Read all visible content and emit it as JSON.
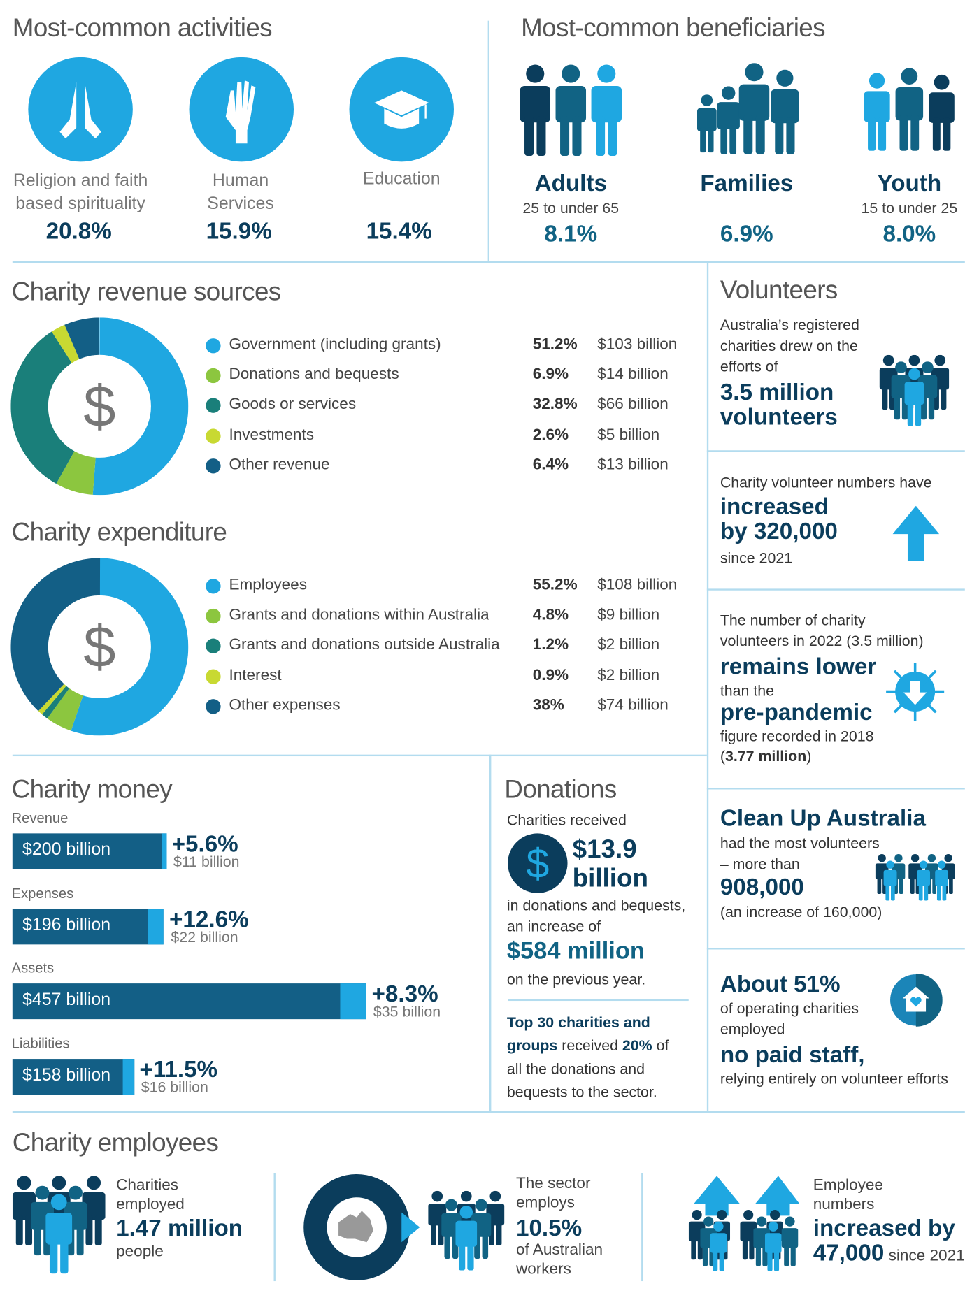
{
  "colors": {
    "light_blue": "#1fa7e1",
    "navy": "#0b3d5c",
    "mid_blue": "#116384",
    "teal": "#1a7f7a",
    "green": "#8cc63f",
    "yellow_green": "#c8d932",
    "divider": "#b3dcef"
  },
  "activities": {
    "title": "Most-common activities",
    "items": [
      {
        "icon": "praying-hands-icon",
        "label": "Religion and faith based spirituality",
        "pct": "20.8%"
      },
      {
        "icon": "helping-hand-icon",
        "label": "Human Services",
        "pct": "15.9%"
      },
      {
        "icon": "graduation-cap-icon",
        "label": "Education",
        "pct": "15.4%"
      }
    ]
  },
  "beneficiaries": {
    "title": "Most-common beneficiaries",
    "items": [
      {
        "icon": "adults-group-icon",
        "label": "Adults",
        "sub": "25 to under 65",
        "pct": "8.1%"
      },
      {
        "icon": "family-group-icon",
        "label": "Families",
        "sub": "",
        "pct": "6.9%"
      },
      {
        "icon": "youth-group-icon",
        "label": "Youth",
        "sub": "15 to under 25",
        "pct": "8.0%"
      }
    ]
  },
  "revenue": {
    "title": "Charity revenue sources",
    "center_icon": "dollar-icon",
    "center_symbol": "$",
    "items": [
      {
        "label": "Government (including grants)",
        "pct": "51.2%",
        "value": "$103 billion",
        "share": 51.2,
        "color": "#1fa7e1"
      },
      {
        "label": "Donations and bequests",
        "pct": "6.9%",
        "value": "$14 billion",
        "share": 6.9,
        "color": "#8cc63f"
      },
      {
        "label": "Goods or services",
        "pct": "32.8%",
        "value": "$66 billion",
        "share": 32.8,
        "color": "#1a7f7a"
      },
      {
        "label": "Investments",
        "pct": "2.6%",
        "value": "$5 billion",
        "share": 2.6,
        "color": "#c8d932"
      },
      {
        "label": "Other revenue",
        "pct": "6.4%",
        "value": "$13 billion",
        "share": 6.4,
        "color": "#135f86"
      }
    ]
  },
  "expenditure": {
    "title": "Charity expenditure",
    "center_symbol": "$",
    "items": [
      {
        "label": "Employees",
        "pct": "55.2%",
        "value": "$108 billion",
        "share": 55.2,
        "color": "#1fa7e1"
      },
      {
        "label": "Grants and donations within Australia",
        "pct": "4.8%",
        "value": "$9 billion",
        "share": 4.8,
        "color": "#8cc63f"
      },
      {
        "label": "Grants and donations outside Australia",
        "pct": "1.2%",
        "value": "$2 billion",
        "share": 1.2,
        "color": "#1a7f7a"
      },
      {
        "label": "Interest",
        "pct": "0.9%",
        "value": "$2 billion",
        "share": 0.9,
        "color": "#c8d932"
      },
      {
        "label": "Other expenses",
        "pct": "38%",
        "value": "$74 billion",
        "share": 38,
        "color": "#135f86"
      }
    ]
  },
  "volunteers": {
    "title": "Volunteers",
    "intro": "Australia’s registered charities drew on the efforts of",
    "highlight": "3.5 million volunteers",
    "increase_intro": "Charity volunteer numbers have",
    "increase_highlight": "increased by 320,000",
    "increase_since": "since 2021",
    "lower_intro": "The number of charity volunteers in 2022 (3.5 million)",
    "lower_h1": "remains lower",
    "lower_mid": "than the",
    "lower_h2": "pre-pandemic",
    "lower_tail": "figure recorded in 2018",
    "lower_fig_open": "(",
    "lower_fig": "3.77 million",
    "lower_fig_close": ")",
    "cleanup_title": "Clean Up Australia",
    "cleanup_line1": "had the most volunteers",
    "cleanup_line2": "– more than",
    "cleanup_num": "908,000",
    "cleanup_inc": "(an increase of 160,000)",
    "nostaff_title": "About 51%",
    "nostaff_line": "of operating charities employed",
    "nostaff_highlight": "no paid staff,",
    "nostaff_tail": "relying entirely on volunteer efforts"
  },
  "money": {
    "title": "Charity money",
    "items": [
      {
        "label": "Revenue",
        "value": "$200 billion",
        "change": "+5.6%",
        "change_abs": "$11 billion"
      },
      {
        "label": "Expenses",
        "value": "$196 billion",
        "change": "+12.6%",
        "change_abs": "$22 billion"
      },
      {
        "label": "Assets",
        "value": "$457 billion",
        "change": "+8.3%",
        "change_abs": "$35 billion"
      },
      {
        "label": "Liabilities",
        "value": "$158 billion",
        "change": "+11.5%",
        "change_abs": "$16 billion"
      }
    ]
  },
  "donations": {
    "title": "Donations",
    "received": "Charities received",
    "symbol": "$",
    "amount_line1": "$13.9",
    "amount_line2": "billion",
    "desc": "in donations and bequests, an increase of",
    "increase": "$584 million",
    "tail": "on the previous year.",
    "top30_bold": "Top 30 charities and groups",
    "top30_mid": " received ",
    "top30_pct": "20%",
    "top30_tail": " of all the donations and bequests to the sector."
  },
  "employees": {
    "title": "Charity employees",
    "a_line1": "Charities employed",
    "a_big": "1.47 million",
    "a_tail": "people",
    "b_line1": "The sector employs",
    "b_big": "10.5%",
    "b_tail": "of Australian workers",
    "c_line1": "Employee numbers",
    "c_big1": "increased by",
    "c_big2": "47,000",
    "c_since": " since 2021"
  }
}
